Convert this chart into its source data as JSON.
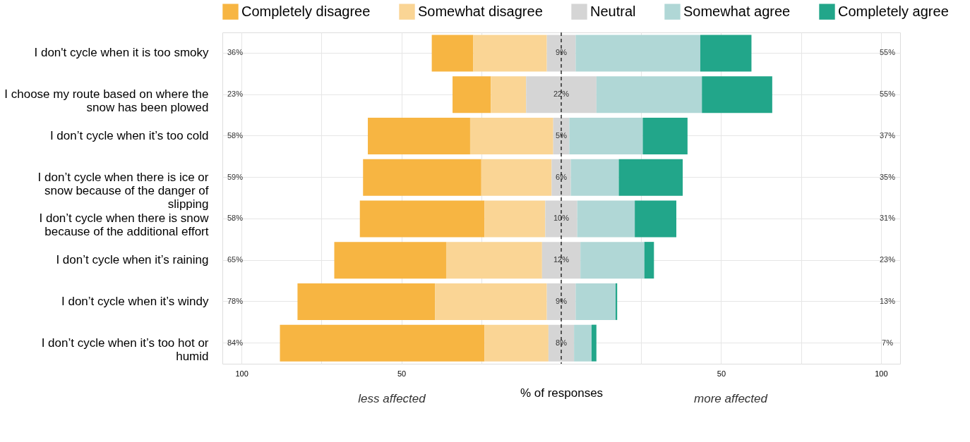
{
  "chart_data": {
    "type": "bar",
    "orientation": "horizontal",
    "xlabel": "% of responses",
    "categories": [
      "I don't cycle when it is too smoky",
      "I choose my route based on where the snow has been plowed",
      "I don’t cycle when it’s too cold",
      "I don’t cycle when there is ice or snow because of the danger of slipping",
      "I don’t cycle when there is snow because of the additional effort",
      "I don’t cycle when it’s raining",
      "I don’t cycle when it’s windy",
      "I don’t cycle when it’s too hot or humid"
    ],
    "series": [
      {
        "name": "Completely disagree",
        "color": "#f7b542",
        "values": [
          13,
          12,
          32,
          37,
          39,
          35,
          43,
          64
        ],
        "base": [
          -40.5,
          -34,
          -60.5,
          -62,
          -63,
          -71,
          -82.5,
          -88
        ]
      },
      {
        "name": "Somewhat disagree",
        "color": "#fad595",
        "values": [
          23,
          11,
          26,
          22,
          19,
          30,
          35,
          20
        ],
        "base": [
          -27.5,
          -22,
          -28.5,
          -25,
          -24,
          -36,
          -39.5,
          -24
        ]
      },
      {
        "name": "Neutral",
        "color": "#d5d5d5",
        "values": [
          9,
          22,
          5,
          6,
          10,
          12,
          9,
          8
        ],
        "base": [
          -4.5,
          -11,
          -2.5,
          -3,
          -5,
          -6,
          -4.5,
          -4
        ],
        "value_labels": [
          "9%",
          "22%",
          "5%",
          "6%",
          "10%",
          "12%",
          "9%",
          "8%"
        ]
      },
      {
        "name": "Somewhat agree",
        "color": "#b0d7d6",
        "values": [
          39,
          33,
          23,
          15,
          18,
          20,
          12.5,
          5.5
        ],
        "base": [
          4.5,
          11,
          2.5,
          3,
          5,
          6,
          4.5,
          4
        ]
      },
      {
        "name": "Completely agree",
        "color": "#22a68a",
        "values": [
          16,
          22,
          14,
          20,
          13,
          3,
          0.5,
          1.5
        ],
        "base": [
          43.5,
          44,
          25.5,
          18,
          23,
          26,
          17,
          9.5
        ]
      }
    ],
    "xlim": [
      -106,
      106
    ],
    "xticks": [
      {
        "value": -100,
        "label": "100"
      },
      {
        "value": -75,
        "label": null
      },
      {
        "value": -50,
        "label": "50"
      },
      {
        "value": -25,
        "label": null
      },
      {
        "value": 0,
        "label": null
      },
      {
        "value": 25,
        "label": null
      },
      {
        "value": 50,
        "label": "50"
      },
      {
        "value": 75,
        "label": null
      },
      {
        "value": 100,
        "label": "100"
      }
    ],
    "ref_lines": [
      {
        "axis": "x",
        "value": 0,
        "color": "#000000",
        "line_style": "dashed"
      }
    ],
    "annotations": [
      "36%",
      "23%",
      "58%",
      "59%",
      "58%",
      "65%",
      "78%",
      "84%",
      "55%",
      "55%",
      "37%",
      "35%",
      "31%",
      "23%",
      "13%",
      "7%",
      "less affected",
      "more affected"
    ],
    "grid": true,
    "legend": "top"
  }
}
